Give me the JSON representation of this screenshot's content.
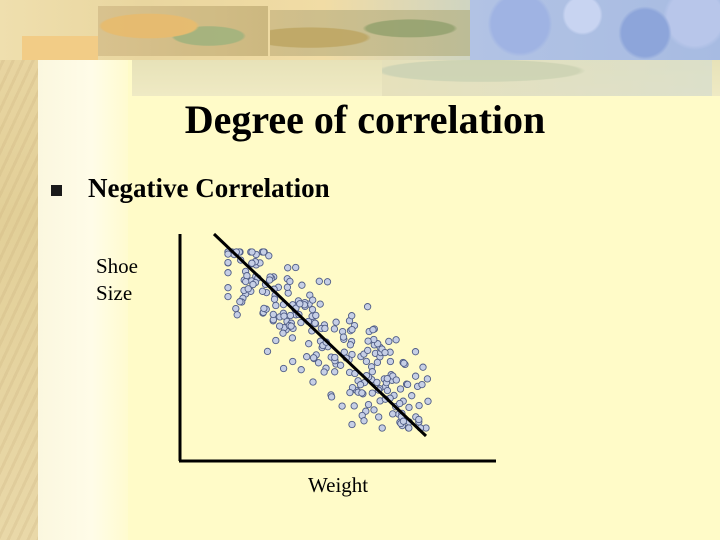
{
  "title": "Degree of correlation",
  "bullet": "Negative Correlation",
  "chart_data": {
    "type": "scatter",
    "xlabel": "Weight",
    "ylabel": "Shoe Size",
    "trend": "negative",
    "point_color": "#c6cfe6",
    "point_stroke": "#4f5c86",
    "axis_color": "#000000"
  },
  "colors": {
    "background": "#fffbc8",
    "text": "#000000"
  }
}
